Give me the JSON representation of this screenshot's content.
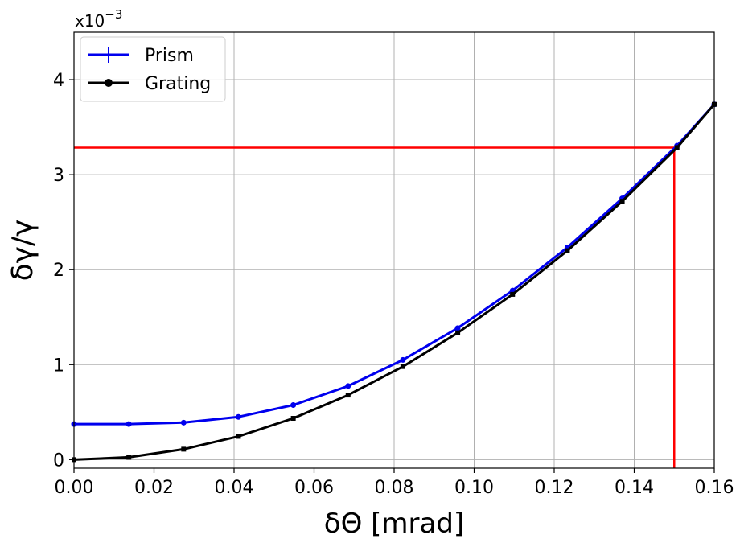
{
  "chart_data": {
    "type": "line",
    "title": "",
    "xlabel": "δΘ [mrad]",
    "ylabel": "δγ/γ",
    "y_multiplier_label": "x10",
    "y_multiplier_exponent": "−3",
    "xlim": [
      0.0,
      0.16
    ],
    "ylim": [
      -0.09,
      4.5
    ],
    "x_ticks": [
      0.0,
      0.02,
      0.04,
      0.06,
      0.08,
      0.1,
      0.12,
      0.14,
      0.16
    ],
    "x_tick_labels": [
      "0.00",
      "0.02",
      "0.04",
      "0.06",
      "0.08",
      "0.10",
      "0.12",
      "0.14",
      "0.16"
    ],
    "y_ticks": [
      0,
      1,
      2,
      3,
      4
    ],
    "y_tick_labels": [
      "0",
      "1",
      "2",
      "3",
      "4"
    ],
    "grid": true,
    "legend_position": "top-left",
    "x": [
      0.0,
      0.0137,
      0.0274,
      0.0411,
      0.0548,
      0.0685,
      0.0822,
      0.0959,
      0.1096,
      0.1233,
      0.137,
      0.1507,
      0.16
    ],
    "series": [
      {
        "name": "Prism",
        "color": "#0000ee",
        "marker": "plus",
        "values": [
          0.375,
          0.375,
          0.39,
          0.45,
          0.575,
          0.775,
          1.05,
          1.385,
          1.78,
          2.235,
          2.75,
          3.305,
          3.74
        ]
      },
      {
        "name": "Grating",
        "color": "#000000",
        "marker": "dot",
        "values": [
          0.0,
          0.025,
          0.11,
          0.245,
          0.435,
          0.68,
          0.98,
          1.335,
          1.74,
          2.2,
          2.72,
          3.285,
          3.74
        ]
      }
    ],
    "reference_lines": {
      "color": "#ff0000",
      "horizontal_y": 3.285,
      "vertical_x": 0.15
    }
  }
}
